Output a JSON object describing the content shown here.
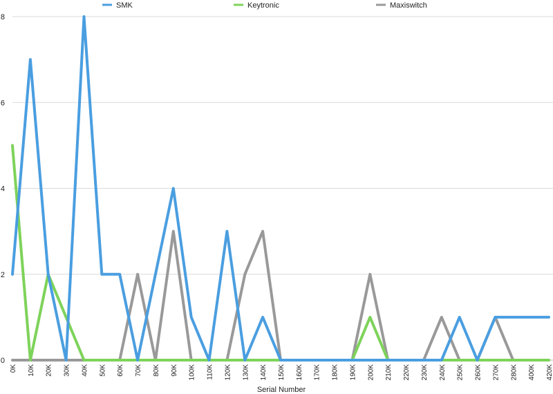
{
  "chart_data": {
    "type": "line",
    "xlabel": "Serial Number",
    "ylabel": "",
    "ylim": [
      0,
      8
    ],
    "yticks": [
      0,
      2,
      4,
      6,
      8
    ],
    "grid": true,
    "legend_position": "top",
    "categories": [
      "0K",
      "10K",
      "20K",
      "30K",
      "40K",
      "50K",
      "60K",
      "70K",
      "80K",
      "90K",
      "100K",
      "110K",
      "120K",
      "130K",
      "140K",
      "150K",
      "160K",
      "170K",
      "180K",
      "190K",
      "200K",
      "210K",
      "220K",
      "230K",
      "240K",
      "250K",
      "260K",
      "270K",
      "280K",
      "400K",
      "420K"
    ],
    "series": [
      {
        "name": "SMK",
        "color": "#4a9ee0",
        "values": [
          2,
          7,
          2,
          0,
          8,
          2,
          2,
          0,
          2,
          4,
          1,
          0,
          3,
          0,
          1,
          0,
          0,
          0,
          0,
          0,
          0,
          0,
          0,
          0,
          0,
          1,
          0,
          1,
          1,
          1,
          1
        ]
      },
      {
        "name": "Keytronic",
        "color": "#7ed35a",
        "values": [
          5,
          0,
          2,
          1,
          0,
          0,
          0,
          0,
          0,
          0,
          0,
          0,
          0,
          0,
          0,
          0,
          0,
          0,
          0,
          0,
          1,
          0,
          0,
          0,
          0,
          0,
          0,
          0,
          0,
          0,
          0
        ]
      },
      {
        "name": "Maxiswitch",
        "color": "#999999",
        "values": [
          0,
          0,
          0,
          0,
          0,
          0,
          0,
          2,
          0,
          3,
          0,
          0,
          0,
          2,
          3,
          0,
          0,
          0,
          0,
          0,
          2,
          0,
          0,
          0,
          1,
          0,
          0,
          1,
          0,
          0,
          0
        ]
      }
    ]
  }
}
